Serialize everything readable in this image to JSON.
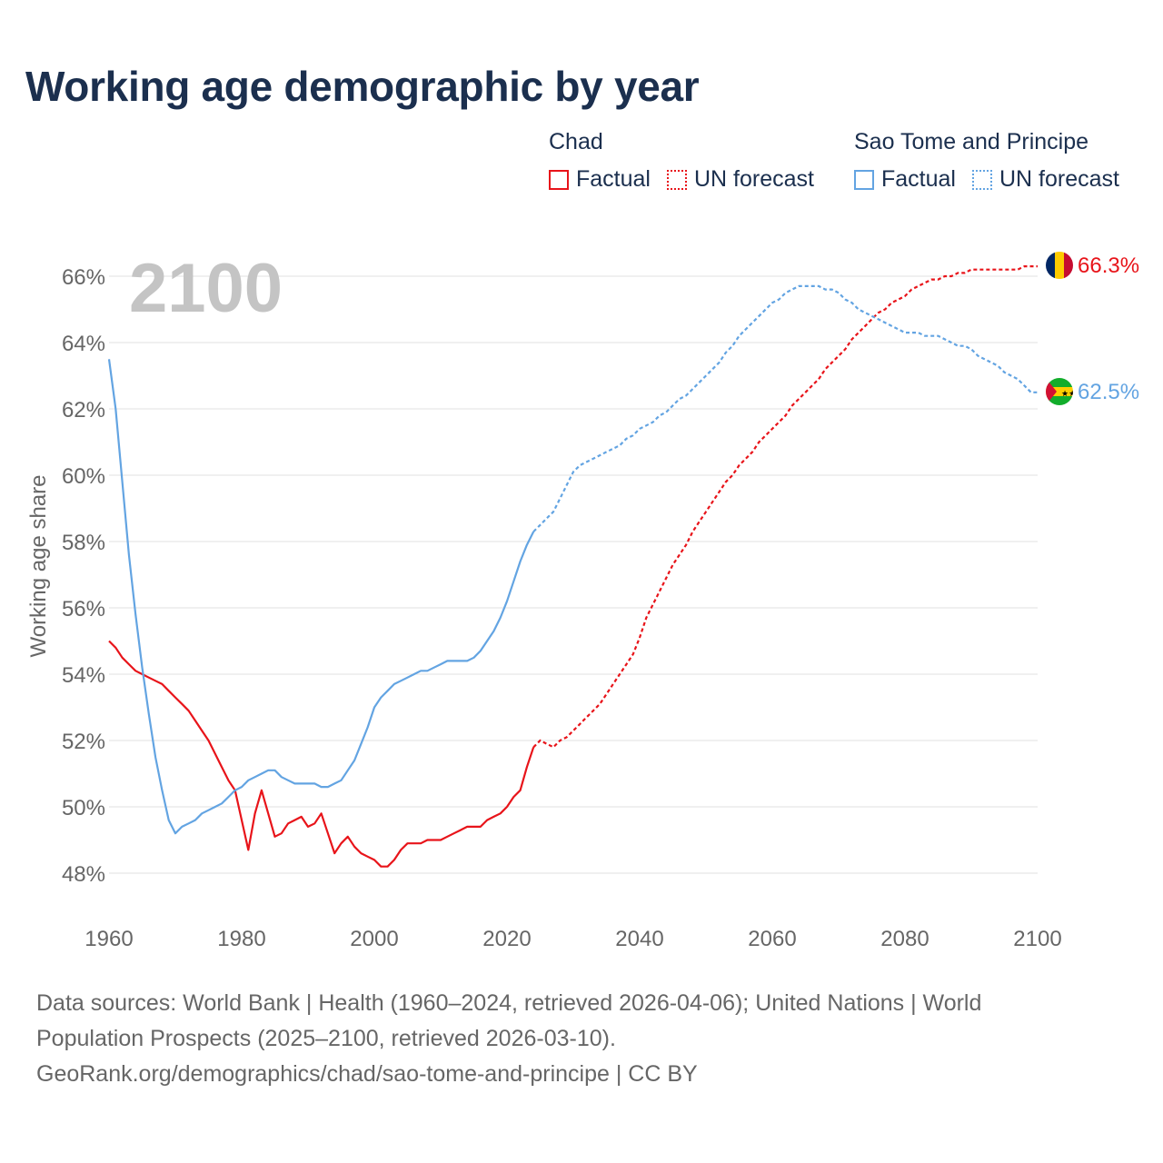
{
  "title": "Working age demographic by year",
  "colors": {
    "chad": "#e8141a",
    "sao_tome": "#63a4e2",
    "grid": "#e2e2e2",
    "year_watermark": "#c4c4c4"
  },
  "legend": {
    "chad": {
      "country": "Chad",
      "factual": "Factual",
      "forecast": "UN forecast"
    },
    "sao_tome": {
      "country": "Sao Tome and Principe",
      "factual": "Factual",
      "forecast": "UN forecast"
    }
  },
  "year_label": "2100",
  "footer": {
    "line1": "Data sources: World Bank | Health (1960–2024, retrieved 2026-04-06); United Nations | World",
    "line2": "Population Prospects (2025–2100, retrieved 2026-03-10).",
    "line3": "GeoRank.org/demographics/chad/sao-tome-and-principe | CC BY"
  },
  "chart_data": {
    "type": "line",
    "title": "Working age demographic by year",
    "xlabel": "",
    "ylabel": "Working age share",
    "xlim": [
      1960,
      2100
    ],
    "ylim": [
      47,
      67
    ],
    "x_ticks": [
      1960,
      1980,
      2000,
      2020,
      2040,
      2060,
      2080,
      2100
    ],
    "x_tick_labels": [
      "1960",
      "1980",
      "2000",
      "2020",
      "2040",
      "2060",
      "2080",
      "2100"
    ],
    "y_ticks": [
      48,
      50,
      52,
      54,
      56,
      58,
      60,
      62,
      64,
      66
    ],
    "y_tick_labels": [
      "48%",
      "50%",
      "52%",
      "54%",
      "56%",
      "58%",
      "60%",
      "62%",
      "64%",
      "66%"
    ],
    "series": [
      {
        "name": "Chad",
        "color": "#e8141a",
        "end_label": "66.3%",
        "factual": {
          "x": [
            1960,
            1961,
            1962,
            1963,
            1964,
            1965,
            1966,
            1967,
            1968,
            1969,
            1970,
            1971,
            1972,
            1973,
            1974,
            1975,
            1976,
            1977,
            1978,
            1979,
            1980,
            1981,
            1982,
            1983,
            1984,
            1985,
            1986,
            1987,
            1988,
            1989,
            1990,
            1991,
            1992,
            1993,
            1994,
            1995,
            1996,
            1997,
            1998,
            1999,
            2000,
            2001,
            2002,
            2003,
            2004,
            2005,
            2006,
            2007,
            2008,
            2009,
            2010,
            2011,
            2012,
            2013,
            2014,
            2015,
            2016,
            2017,
            2018,
            2019,
            2020,
            2021,
            2022,
            2023,
            2024
          ],
          "y": [
            55.0,
            54.8,
            54.5,
            54.3,
            54.1,
            54.0,
            53.9,
            53.8,
            53.7,
            53.5,
            53.3,
            53.1,
            52.9,
            52.6,
            52.3,
            52.0,
            51.6,
            51.2,
            50.8,
            50.5,
            49.6,
            48.7,
            49.8,
            50.5,
            49.8,
            49.1,
            49.2,
            49.5,
            49.6,
            49.7,
            49.4,
            49.5,
            49.8,
            49.2,
            48.6,
            48.9,
            49.1,
            48.8,
            48.6,
            48.5,
            48.4,
            48.2,
            48.2,
            48.4,
            48.7,
            48.9,
            48.9,
            48.9,
            49.0,
            49.0,
            49.0,
            49.1,
            49.2,
            49.3,
            49.4,
            49.4,
            49.4,
            49.6,
            49.7,
            49.8,
            50.0,
            50.3,
            50.5,
            51.2,
            51.8
          ]
        },
        "forecast": {
          "x": [
            2024,
            2025,
            2026,
            2027,
            2028,
            2029,
            2030,
            2031,
            2032,
            2033,
            2034,
            2035,
            2036,
            2037,
            2038,
            2039,
            2040,
            2041,
            2042,
            2043,
            2044,
            2045,
            2046,
            2047,
            2048,
            2049,
            2050,
            2051,
            2052,
            2053,
            2054,
            2055,
            2056,
            2057,
            2058,
            2059,
            2060,
            2061,
            2062,
            2063,
            2064,
            2065,
            2066,
            2067,
            2068,
            2069,
            2070,
            2071,
            2072,
            2073,
            2074,
            2075,
            2076,
            2077,
            2078,
            2079,
            2080,
            2081,
            2082,
            2083,
            2084,
            2085,
            2086,
            2087,
            2088,
            2089,
            2090,
            2091,
            2092,
            2093,
            2094,
            2095,
            2096,
            2097,
            2098,
            2099,
            2100
          ],
          "y": [
            51.8,
            52.0,
            51.9,
            51.8,
            52.0,
            52.1,
            52.3,
            52.5,
            52.7,
            52.9,
            53.1,
            53.4,
            53.7,
            54.0,
            54.3,
            54.6,
            55.1,
            55.7,
            56.1,
            56.5,
            56.9,
            57.3,
            57.6,
            57.9,
            58.3,
            58.6,
            58.9,
            59.2,
            59.5,
            59.8,
            60.0,
            60.3,
            60.5,
            60.7,
            61.0,
            61.2,
            61.4,
            61.6,
            61.8,
            62.1,
            62.3,
            62.5,
            62.7,
            62.9,
            63.2,
            63.4,
            63.6,
            63.8,
            64.1,
            64.3,
            64.5,
            64.7,
            64.9,
            65.0,
            65.2,
            65.3,
            65.4,
            65.6,
            65.7,
            65.8,
            65.9,
            65.9,
            66.0,
            66.0,
            66.1,
            66.1,
            66.2,
            66.2,
            66.2,
            66.2,
            66.2,
            66.2,
            66.2,
            66.2,
            66.3,
            66.3,
            66.3
          ]
        }
      },
      {
        "name": "Sao Tome and Principe",
        "color": "#63a4e2",
        "end_label": "62.5%",
        "factual": {
          "x": [
            1960,
            1961,
            1962,
            1963,
            1964,
            1965,
            1966,
            1967,
            1968,
            1969,
            1970,
            1971,
            1972,
            1973,
            1974,
            1975,
            1976,
            1977,
            1978,
            1979,
            1980,
            1981,
            1982,
            1983,
            1984,
            1985,
            1986,
            1987,
            1988,
            1989,
            1990,
            1991,
            1992,
            1993,
            1994,
            1995,
            1996,
            1997,
            1998,
            1999,
            2000,
            2001,
            2002,
            2003,
            2004,
            2005,
            2006,
            2007,
            2008,
            2009,
            2010,
            2011,
            2012,
            2013,
            2014,
            2015,
            2016,
            2017,
            2018,
            2019,
            2020,
            2021,
            2022,
            2023,
            2024
          ],
          "y": [
            63.5,
            62.0,
            59.8,
            57.6,
            55.8,
            54.2,
            52.8,
            51.5,
            50.5,
            49.6,
            49.2,
            49.4,
            49.5,
            49.6,
            49.8,
            49.9,
            50.0,
            50.1,
            50.3,
            50.5,
            50.6,
            50.8,
            50.9,
            51.0,
            51.1,
            51.1,
            50.9,
            50.8,
            50.7,
            50.7,
            50.7,
            50.7,
            50.6,
            50.6,
            50.7,
            50.8,
            51.1,
            51.4,
            51.9,
            52.4,
            53.0,
            53.3,
            53.5,
            53.7,
            53.8,
            53.9,
            54.0,
            54.1,
            54.1,
            54.2,
            54.3,
            54.4,
            54.4,
            54.4,
            54.4,
            54.5,
            54.7,
            55.0,
            55.3,
            55.7,
            56.2,
            56.8,
            57.4,
            57.9,
            58.3
          ]
        },
        "forecast": {
          "x": [
            2024,
            2025,
            2026,
            2027,
            2028,
            2029,
            2030,
            2031,
            2032,
            2033,
            2034,
            2035,
            2036,
            2037,
            2038,
            2039,
            2040,
            2041,
            2042,
            2043,
            2044,
            2045,
            2046,
            2047,
            2048,
            2049,
            2050,
            2051,
            2052,
            2053,
            2054,
            2055,
            2056,
            2057,
            2058,
            2059,
            2060,
            2061,
            2062,
            2063,
            2064,
            2065,
            2066,
            2067,
            2068,
            2069,
            2070,
            2071,
            2072,
            2073,
            2074,
            2075,
            2076,
            2077,
            2078,
            2079,
            2080,
            2081,
            2082,
            2083,
            2084,
            2085,
            2086,
            2087,
            2088,
            2089,
            2090,
            2091,
            2092,
            2093,
            2094,
            2095,
            2096,
            2097,
            2098,
            2099,
            2100
          ],
          "y": [
            58.3,
            58.5,
            58.7,
            58.9,
            59.3,
            59.7,
            60.1,
            60.3,
            60.4,
            60.5,
            60.6,
            60.7,
            60.8,
            60.9,
            61.1,
            61.2,
            61.4,
            61.5,
            61.6,
            61.8,
            61.9,
            62.1,
            62.3,
            62.4,
            62.6,
            62.8,
            63.0,
            63.2,
            63.4,
            63.7,
            63.9,
            64.2,
            64.4,
            64.6,
            64.8,
            65.0,
            65.2,
            65.3,
            65.5,
            65.6,
            65.7,
            65.7,
            65.7,
            65.7,
            65.6,
            65.6,
            65.5,
            65.3,
            65.2,
            65.0,
            64.9,
            64.8,
            64.7,
            64.6,
            64.5,
            64.4,
            64.3,
            64.3,
            64.3,
            64.2,
            64.2,
            64.2,
            64.1,
            64.0,
            63.9,
            63.9,
            63.8,
            63.6,
            63.5,
            63.4,
            63.3,
            63.1,
            63.0,
            62.9,
            62.7,
            62.5,
            62.5
          ]
        }
      }
    ]
  }
}
